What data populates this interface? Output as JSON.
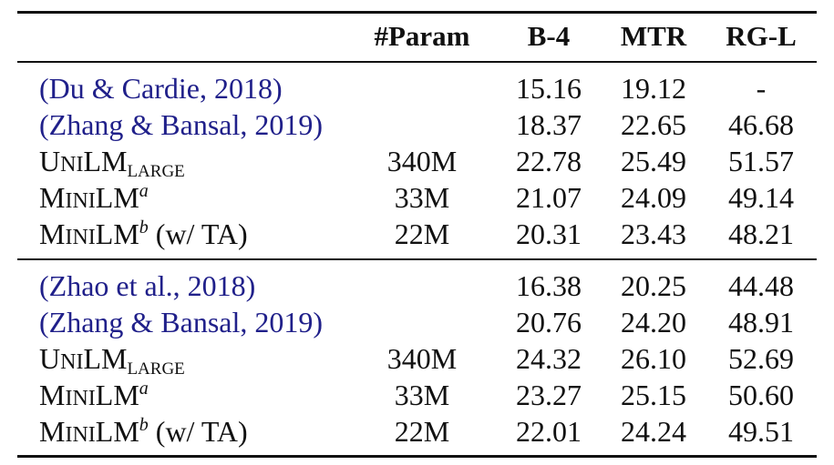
{
  "header": {
    "method": "",
    "param": "#Param",
    "b4": "B-4",
    "mtr": "MTR",
    "rgl": "RG-L"
  },
  "sections": [
    {
      "rows": [
        {
          "name": "(Du & Cardie, 2018)",
          "param": "",
          "b4": "15.16",
          "mtr": "19.12",
          "rgl": "-"
        },
        {
          "name": "(Zhang & Bansal, 2019)",
          "param": "",
          "b4": "18.37",
          "mtr": "22.65",
          "rgl": "46.68"
        },
        {
          "name_cap1": "U",
          "name_sc1": "NI",
          "name_cap2": "LM",
          "name_sub": "LARGE",
          "param": "340M",
          "b4": "22.78",
          "mtr": "25.49",
          "rgl": "51.57"
        },
        {
          "name_cap1": "M",
          "name_sc1": "INI",
          "name_cap2": "LM",
          "name_sup": "a",
          "param": "33M",
          "b4": "21.07",
          "mtr": "24.09",
          "rgl": "49.14"
        },
        {
          "name_cap1": "M",
          "name_sc1": "INI",
          "name_cap2": "LM",
          "name_sup": "b",
          "name_suffix": " (w/ TA)",
          "param": "22M",
          "b4": "20.31",
          "mtr": "23.43",
          "rgl": "48.21"
        }
      ]
    },
    {
      "rows": [
        {
          "name": "(Zhao et al., 2018)",
          "param": "",
          "b4": "16.38",
          "mtr": "20.25",
          "rgl": "44.48"
        },
        {
          "name": "(Zhang & Bansal, 2019)",
          "param": "",
          "b4": "20.76",
          "mtr": "24.20",
          "rgl": "48.91"
        },
        {
          "name_cap1": "U",
          "name_sc1": "NI",
          "name_cap2": "LM",
          "name_sub": "LARGE",
          "param": "340M",
          "b4": "24.32",
          "mtr": "26.10",
          "rgl": "52.69"
        },
        {
          "name_cap1": "M",
          "name_sc1": "INI",
          "name_cap2": "LM",
          "name_sup": "a",
          "param": "33M",
          "b4": "23.27",
          "mtr": "25.15",
          "rgl": "50.60"
        },
        {
          "name_cap1": "M",
          "name_sc1": "INI",
          "name_cap2": "LM",
          "name_sup": "b",
          "name_suffix": " (w/ TA)",
          "param": "22M",
          "b4": "22.01",
          "mtr": "24.24",
          "rgl": "49.51"
        }
      ]
    }
  ]
}
